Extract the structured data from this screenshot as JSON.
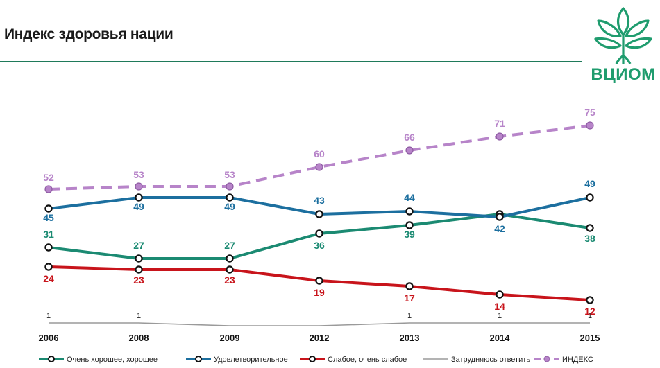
{
  "header": {
    "title": "Индекс здоровья нации",
    "logo_text": "ВЦИОМ"
  },
  "colors": {
    "green": "#1b8a72",
    "blue": "#1c6f9f",
    "red": "#c8141b",
    "gray": "#9a9a9a",
    "purple": "#b784c9",
    "accent": "#1f9c6e"
  },
  "chart_data": {
    "type": "line",
    "categories": [
      "2006",
      "2008",
      "2009",
      "2012",
      "2013",
      "2014",
      "2015"
    ],
    "series": [
      {
        "name": "Очень хорошее, хорошее",
        "values": [
          31,
          27,
          27,
          36,
          39,
          43,
          38
        ],
        "color": "#1b8a72",
        "style": "solid"
      },
      {
        "name": "Удовлетворительное",
        "values": [
          45,
          49,
          49,
          43,
          44,
          42,
          49
        ],
        "color": "#1c6f9f",
        "style": "solid"
      },
      {
        "name": "Слабое, очень слабое",
        "values": [
          24,
          23,
          23,
          19,
          17,
          14,
          12
        ],
        "color": "#c8141b",
        "style": "solid"
      },
      {
        "name": "Затрудняюсь ответить",
        "values": [
          1,
          1,
          null,
          null,
          1,
          1,
          1
        ],
        "color": "#9a9a9a",
        "style": "thin"
      },
      {
        "name": "ИНДЕКС",
        "values": [
          52,
          53,
          53,
          60,
          66,
          71,
          75
        ],
        "color": "#b784c9",
        "style": "dashed"
      }
    ],
    "legend_position": "bottom",
    "grid": false
  }
}
